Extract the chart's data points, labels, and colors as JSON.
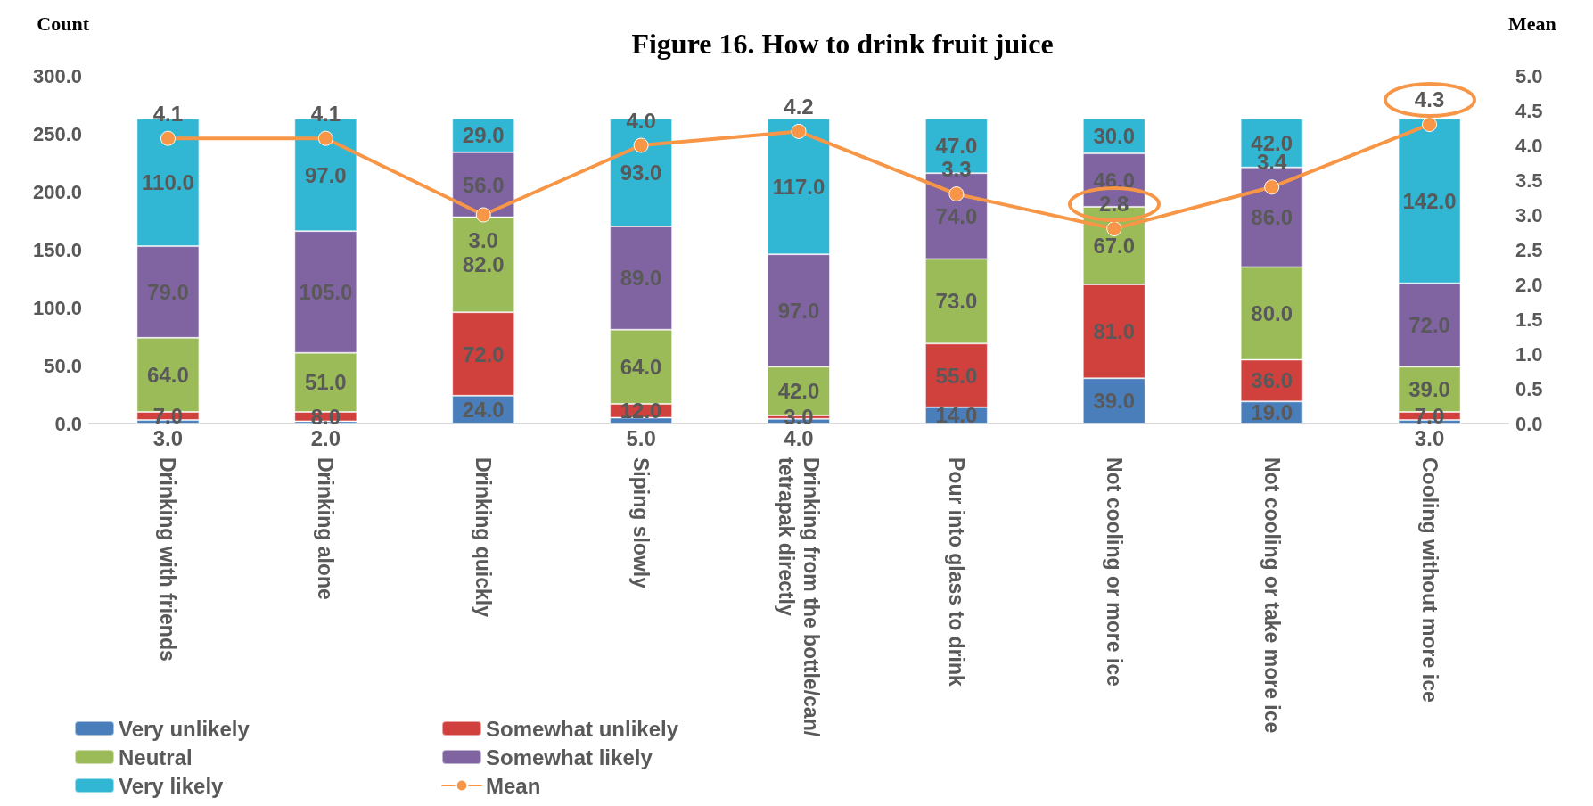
{
  "chart_data": {
    "type": "bar",
    "stacked": true,
    "title": "Figure 16. How to drink fruit juice",
    "ylabel": "Count",
    "y2label": "Mean",
    "categories": [
      "Drinking with friends",
      "Drinking alone",
      "Drinking quickly",
      "Siping slowly",
      "Drinking from the bottle/can/tetrapak directly",
      "Pour into glass to drink",
      "Not cooling or more ice",
      "Not cooling or take more ice",
      "Cooling without more ice"
    ],
    "series": [
      {
        "name": "Very unlikely",
        "color": "#4a7ebb",
        "values": [
          3,
          2,
          24,
          5,
          4,
          14,
          39,
          19,
          3
        ],
        "value_labels": [
          "3.0",
          "2.0",
          "24.0",
          "5.0",
          "4.0",
          "14.0",
          "39.0",
          "19.0",
          "3.0"
        ]
      },
      {
        "name": "Somewhat unlikely",
        "color": "#d0413e",
        "values": [
          7,
          8,
          72,
          12,
          3,
          55,
          81,
          36,
          7
        ],
        "value_labels": [
          "7.0",
          "8.0",
          "72.0",
          "12.0",
          "3.0",
          "55.0",
          "81.0",
          "36.0",
          "7.0"
        ]
      },
      {
        "name": "Neutral",
        "color": "#9bbb59",
        "values": [
          64,
          51,
          82,
          64,
          42,
          73,
          67,
          80,
          39
        ],
        "value_labels": [
          "64.0",
          "51.0",
          "82.0",
          "64.0",
          "42.0",
          "73.0",
          "67.0",
          "80.0",
          "39.0"
        ]
      },
      {
        "name": "Somewhat likely",
        "color": "#8064a2",
        "values": [
          79,
          105,
          56,
          89,
          97,
          74,
          46,
          86,
          72
        ],
        "value_labels": [
          "79.0",
          "105.0",
          "56.0",
          "89.0",
          "97.0",
          "74.0",
          "46.0",
          "86.0",
          "72.0"
        ]
      },
      {
        "name": "Very likely",
        "color": "#31b6d3",
        "values": [
          110,
          97,
          29,
          93,
          117,
          47,
          30,
          42,
          142
        ],
        "value_labels": [
          "110.0",
          "97.0",
          "29.0",
          "93.0",
          "117.0",
          "47.0",
          "30.0",
          "42.0",
          "142.0"
        ]
      },
      {
        "name": "Mean",
        "type": "line",
        "axis": "y2",
        "color": "#f79646",
        "marker": "circle",
        "values": [
          4.1,
          4.1,
          3.0,
          4.0,
          4.2,
          3.3,
          2.8,
          3.4,
          4.3
        ],
        "value_labels": [
          "4.1",
          "4.1",
          "3.0",
          "4.0",
          "4.2",
          "3.3",
          "2.8",
          "3.4",
          "4.3"
        ]
      }
    ],
    "ylim": [
      0,
      300
    ],
    "yticks": [
      {
        "value": 0,
        "label": "0.0"
      },
      {
        "value": 50,
        "label": "50.0"
      },
      {
        "value": 100,
        "label": "100.0"
      },
      {
        "value": 150,
        "label": "150.0"
      },
      {
        "value": 200,
        "label": "200.0"
      },
      {
        "value": 250,
        "label": "250.0"
      },
      {
        "value": 300,
        "label": "300.0"
      }
    ],
    "y2lim": [
      0,
      5
    ],
    "y2ticks": [
      {
        "value": 0,
        "label": "0.0"
      },
      {
        "value": 0.5,
        "label": "0.5"
      },
      {
        "value": 1,
        "label": "1.0"
      },
      {
        "value": 1.5,
        "label": "1.5"
      },
      {
        "value": 2,
        "label": "2.0"
      },
      {
        "value": 2.5,
        "label": "2.5"
      },
      {
        "value": 3,
        "label": "3.0"
      },
      {
        "value": 3.5,
        "label": "3.5"
      },
      {
        "value": 4,
        "label": "4.0"
      },
      {
        "value": 4.5,
        "label": "4.5"
      },
      {
        "value": 5,
        "label": "5.0"
      }
    ],
    "grid": false,
    "legend": "bottom left"
  }
}
